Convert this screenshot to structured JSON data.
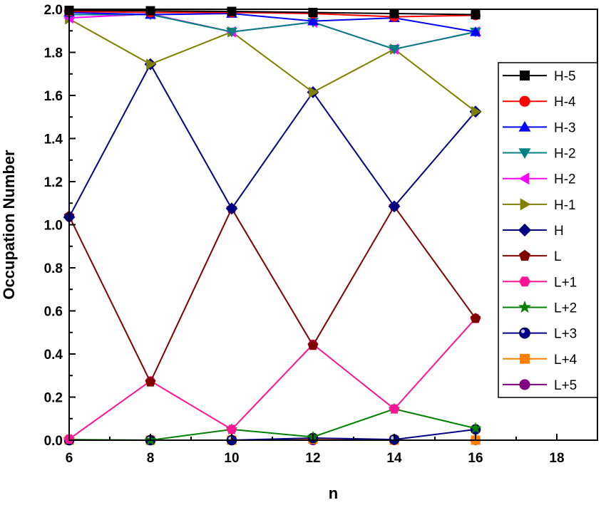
{
  "chart_data": {
    "type": "line",
    "xlabel": "n",
    "ylabel": "Occupation Number",
    "xlim": [
      6,
      19
    ],
    "ylim": [
      0,
      2.0
    ],
    "xticks": [
      6,
      8,
      10,
      12,
      14,
      16,
      18
    ],
    "yticks": [
      0.0,
      0.2,
      0.4,
      0.6,
      0.8,
      1.0,
      1.2,
      1.4,
      1.6,
      1.8,
      2.0
    ],
    "xtick_labels": [
      "6",
      "8",
      "10",
      "12",
      "14",
      "16",
      "18"
    ],
    "ytick_labels": [
      "0.0",
      "0.2",
      "0.4",
      "0.6",
      "0.8",
      "1.0",
      "1.2",
      "1.4",
      "1.6",
      "1.8",
      "2.0"
    ],
    "grid": false,
    "legend_position": "right",
    "x": [
      6,
      8,
      10,
      12,
      14,
      16
    ],
    "series": [
      {
        "name": "H-5",
        "color": "#000000",
        "marker": "square",
        "values": [
          1.995,
          1.993,
          1.99,
          1.985,
          1.98,
          1.975
        ]
      },
      {
        "name": "H-4",
        "color": "#ff0000",
        "marker": "circle",
        "values": [
          1.99,
          1.985,
          1.985,
          1.98,
          1.965,
          1.972
        ]
      },
      {
        "name": "H-3",
        "color": "#0000ff",
        "marker": "triangle-up",
        "values": [
          1.985,
          1.975,
          1.98,
          1.945,
          1.96,
          1.895
        ]
      },
      {
        "name": "H-2",
        "color": "#008080",
        "marker": "triangle-down",
        "values": [
          1.975,
          1.975,
          1.895,
          1.94,
          1.815,
          1.895
        ]
      },
      {
        "name": "H-2",
        "color": "#ff00ff",
        "marker": "triangle-left",
        "values": [
          1.96,
          1.978,
          1.895,
          1.94,
          1.815,
          1.895
        ]
      },
      {
        "name": "H-1",
        "color": "#808000",
        "marker": "triangle-right",
        "values": [
          1.955,
          1.745,
          1.895,
          1.615,
          1.815,
          1.525
        ]
      },
      {
        "name": "H",
        "color": "#000080",
        "marker": "diamond",
        "values": [
          1.035,
          1.745,
          1.075,
          1.615,
          1.085,
          1.525
        ]
      },
      {
        "name": "L",
        "color": "#800000",
        "marker": "pentagon",
        "values": [
          1.04,
          0.27,
          1.075,
          0.44,
          1.085,
          0.565
        ]
      },
      {
        "name": "L+1",
        "color": "#ff1493",
        "marker": "hexagon",
        "values": [
          0.005,
          0.275,
          0.05,
          0.445,
          0.145,
          0.565
        ]
      },
      {
        "name": "L+2",
        "color": "#008000",
        "marker": "star",
        "values": [
          0.003,
          0.0,
          0.05,
          0.015,
          0.145,
          0.055
        ]
      },
      {
        "name": "L+3",
        "color": "#00008b",
        "marker": "sphere",
        "values": [
          0.0,
          0.0,
          0.0,
          0.01,
          0.003,
          0.05
        ]
      },
      {
        "name": "L+4",
        "color": "#ff8000",
        "marker": "square",
        "values": [
          0.0,
          0.0,
          0.0,
          0.005,
          0.0,
          0.0
        ]
      },
      {
        "name": "L+5",
        "color": "#800080",
        "marker": "circle",
        "values": [
          0.0,
          0.0,
          0.0,
          0.0,
          0.0,
          0.0
        ]
      }
    ]
  }
}
